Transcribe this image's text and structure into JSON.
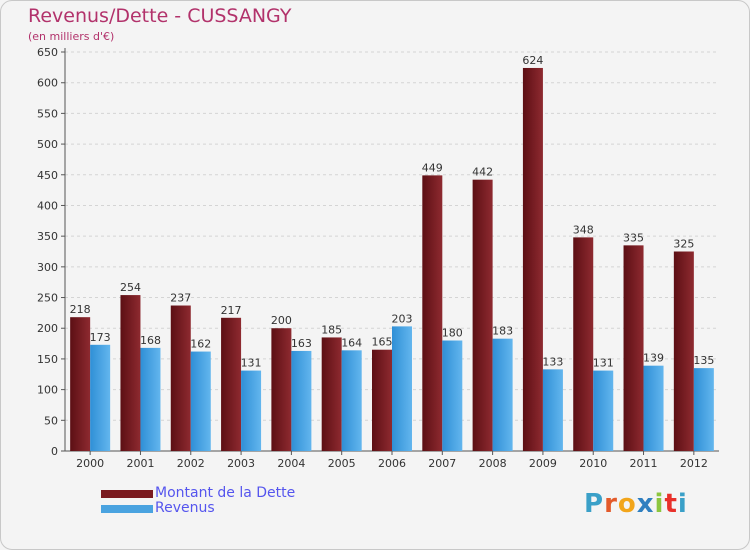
{
  "title": "Revenus/Dette - CUSSANGY",
  "subtitle": "(en milliers d'€)",
  "brand": {
    "letters": [
      "P",
      "r",
      "o",
      "x",
      "i",
      "t",
      "i"
    ],
    "colors": [
      "#3aa0c8",
      "#e35a2a",
      "#f2a51a",
      "#2f7fc0",
      "#8cc63f",
      "#e8302a",
      "#3aa0c8"
    ]
  },
  "colors": {
    "dette": "#7a1a1f",
    "revenus": "#4aa3e0",
    "title": "#b2326b",
    "legend_text": "#5555ee"
  },
  "chart_data": {
    "type": "bar",
    "categories": [
      "2000",
      "2001",
      "2002",
      "2003",
      "2004",
      "2005",
      "2006",
      "2007",
      "2008",
      "2009",
      "2010",
      "2011",
      "2012"
    ],
    "series": [
      {
        "name": "Montant de la Dette",
        "values": [
          218,
          254,
          237,
          217,
          200,
          185,
          165,
          449,
          442,
          624,
          348,
          335,
          325
        ]
      },
      {
        "name": "Revenus",
        "values": [
          173,
          168,
          162,
          131,
          163,
          164,
          203,
          180,
          183,
          133,
          131,
          139,
          135
        ]
      }
    ],
    "ylim": [
      0,
      650
    ],
    "yticks": [
      0,
      50,
      100,
      150,
      200,
      250,
      300,
      350,
      400,
      450,
      500,
      550,
      600,
      650
    ],
    "grid": true,
    "legend": "bottom-left"
  }
}
